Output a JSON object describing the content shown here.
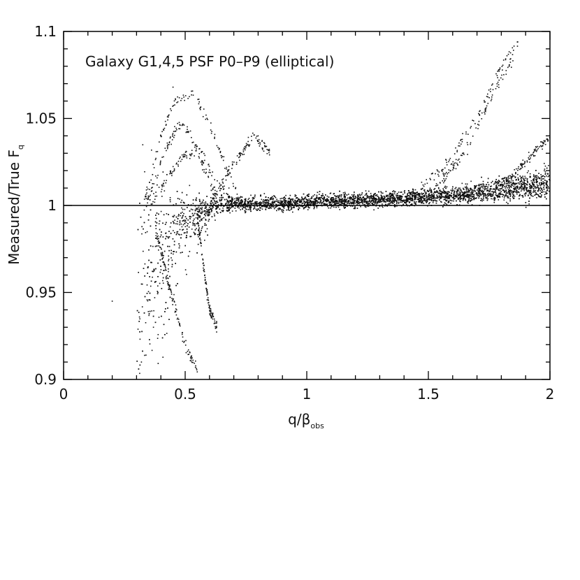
{
  "chart_data": {
    "type": "scatter",
    "title": "",
    "annotation": "Galaxy G1,4,5    PSF P0–P9 (elliptical)",
    "xlabel": {
      "main": "q/β",
      "sub": "obs"
    },
    "ylabel": {
      "main": "Measured/True F",
      "sub": "q"
    },
    "xlim": [
      0,
      2
    ],
    "ylim": [
      0.9,
      1.1
    ],
    "xticks": [
      {
        "value": 0,
        "label": "0"
      },
      {
        "value": 0.5,
        "label": "0.5"
      },
      {
        "value": 1,
        "label": "1"
      },
      {
        "value": 1.5,
        "label": "1.5"
      },
      {
        "value": 2,
        "label": "2"
      }
    ],
    "yticks": [
      {
        "value": 0.9,
        "label": "0.9"
      },
      {
        "value": 0.95,
        "label": "0.95"
      },
      {
        "value": 1,
        "label": "1"
      },
      {
        "value": 1.05,
        "label": "1.05"
      },
      {
        "value": 1.1,
        "label": "1.1"
      }
    ],
    "reference_line": {
      "y": 1
    },
    "grid": false,
    "legend": "none",
    "point_color": "#111111",
    "series": [
      {
        "points_description": "dense cloud of measured/true ratios; starts at q/beta = 0.3 with large scatter down to 0.9, tight band near 1.0 from 0.6 to 1.3, rising slowly to ~1.01-1.02 at q/beta = 2",
        "main_band": [
          [
            0.3,
            0.96,
            0.065
          ],
          [
            0.33,
            0.972,
            0.055
          ],
          [
            0.36,
            0.98,
            0.045
          ],
          [
            0.4,
            0.986,
            0.035
          ],
          [
            0.45,
            0.992,
            0.025
          ],
          [
            0.5,
            0.995,
            0.015
          ],
          [
            0.55,
            0.998,
            0.01
          ],
          [
            0.6,
            1.0,
            0.007
          ],
          [
            0.7,
            1.001,
            0.004
          ],
          [
            0.8,
            1.001,
            0.004
          ],
          [
            0.9,
            1.001,
            0.004
          ],
          [
            1.0,
            1.002,
            0.004
          ],
          [
            1.2,
            1.003,
            0.004
          ],
          [
            1.4,
            1.004,
            0.004
          ],
          [
            1.6,
            1.006,
            0.005
          ],
          [
            1.8,
            1.009,
            0.007
          ],
          [
            2.0,
            1.013,
            0.009
          ]
        ],
        "tracks": [
          [
            [
              0.34,
              1.0
            ],
            [
              0.4,
              1.025
            ],
            [
              0.47,
              1.047
            ],
            [
              0.52,
              1.042
            ],
            [
              0.58,
              1.02
            ],
            [
              0.63,
              1.005
            ]
          ],
          [
            [
              0.36,
              1.0
            ],
            [
              0.42,
              1.015
            ],
            [
              0.5,
              1.03
            ],
            [
              0.57,
              1.03
            ],
            [
              0.62,
              1.015
            ],
            [
              0.7,
              1.002
            ]
          ],
          [
            [
              0.33,
              1.0
            ],
            [
              0.4,
              1.04
            ],
            [
              0.46,
              1.06
            ],
            [
              0.53,
              1.065
            ],
            [
              0.59,
              1.05
            ],
            [
              0.66,
              1.025
            ],
            [
              0.72,
              1.005
            ]
          ],
          [
            [
              0.6,
              1.0
            ],
            [
              0.68,
              1.02
            ],
            [
              0.78,
              1.04
            ],
            [
              0.85,
              1.03
            ]
          ],
          [
            [
              1.4,
              1.004
            ],
            [
              1.55,
              1.02
            ],
            [
              1.7,
              1.05
            ],
            [
              1.8,
              1.08
            ],
            [
              1.87,
              1.095
            ]
          ],
          [
            [
              1.5,
              1.005
            ],
            [
              1.65,
              1.03
            ],
            [
              1.75,
              1.06
            ],
            [
              1.85,
              1.085
            ]
          ],
          [
            [
              1.8,
              1.012
            ],
            [
              1.9,
              1.025
            ],
            [
              2.0,
              1.04
            ]
          ],
          [
            [
              0.38,
              0.985
            ],
            [
              0.45,
              0.945
            ],
            [
              0.5,
              0.92
            ],
            [
              0.55,
              0.905
            ]
          ],
          [
            [
              0.55,
              0.995
            ],
            [
              0.58,
              0.96
            ],
            [
              0.6,
              0.94
            ],
            [
              0.63,
              0.93
            ]
          ]
        ]
      }
    ]
  }
}
